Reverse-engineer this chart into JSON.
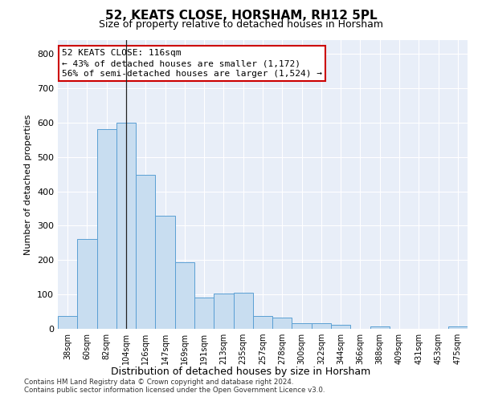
{
  "title": "52, KEATS CLOSE, HORSHAM, RH12 5PL",
  "subtitle": "Size of property relative to detached houses in Horsham",
  "xlabel": "Distribution of detached houses by size in Horsham",
  "ylabel": "Number of detached properties",
  "bar_color": "#c8ddf0",
  "bar_edge_color": "#5a9fd4",
  "background_color": "#e8eef8",
  "categories": [
    "38sqm",
    "60sqm",
    "82sqm",
    "104sqm",
    "126sqm",
    "147sqm",
    "169sqm",
    "191sqm",
    "213sqm",
    "235sqm",
    "257sqm",
    "278sqm",
    "300sqm",
    "322sqm",
    "344sqm",
    "366sqm",
    "388sqm",
    "409sqm",
    "431sqm",
    "453sqm",
    "475sqm"
  ],
  "values": [
    38,
    262,
    580,
    600,
    448,
    330,
    193,
    90,
    102,
    105,
    37,
    33,
    17,
    17,
    12,
    0,
    7,
    0,
    0,
    0,
    7
  ],
  "ylim": [
    0,
    840
  ],
  "yticks": [
    0,
    100,
    200,
    300,
    400,
    500,
    600,
    700,
    800
  ],
  "property_bar_index": 3,
  "annotation_line1": "52 KEATS CLOSE: 116sqm",
  "annotation_line2": "← 43% of detached houses are smaller (1,172)",
  "annotation_line3": "56% of semi-detached houses are larger (1,524) →",
  "annotation_box_color": "#ffffff",
  "annotation_box_edge": "#cc0000",
  "footer1": "Contains HM Land Registry data © Crown copyright and database right 2024.",
  "footer2": "Contains public sector information licensed under the Open Government Licence v3.0."
}
